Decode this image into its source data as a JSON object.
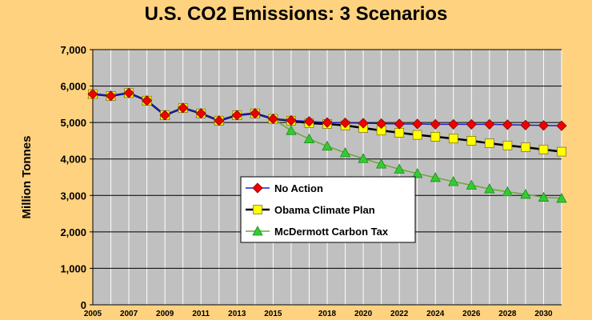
{
  "chart_data": {
    "type": "line",
    "title": "U.S. CO2 Emissions: 3 Scenarios",
    "ylabel": "Million Tonnes",
    "xlabel": "",
    "ylim": [
      0,
      7000
    ],
    "xlim": [
      2005,
      2031
    ],
    "yticks": [
      0,
      1000,
      2000,
      3000,
      4000,
      5000,
      6000,
      7000
    ],
    "ytick_labels": [
      "0",
      "1,000",
      "2,000",
      "3,000",
      "4,000",
      "5,000",
      "6,000",
      "7,000"
    ],
    "xticks": [
      2005,
      2007,
      2009,
      2011,
      2013,
      2015,
      2018,
      2020,
      2022,
      2024,
      2026,
      2028,
      2030
    ],
    "xtick_labels": [
      "2005",
      "2007",
      "2009",
      "2011",
      "2013",
      "2015",
      "2018",
      "2020",
      "2022",
      "2024",
      "2026",
      "2028",
      "2030"
    ],
    "grid": true,
    "legend_position": "center",
    "plot_background": "#c0c0c0",
    "series": [
      {
        "name": "No Action",
        "color": "#1f1fcc",
        "marker": "diamond",
        "marker_color": "#ee0000",
        "x": [
          2005,
          2006,
          2007,
          2008,
          2009,
          2010,
          2011,
          2012,
          2013,
          2014,
          2015,
          2016,
          2017,
          2018,
          2019,
          2020,
          2021,
          2022,
          2023,
          2024,
          2025,
          2026,
          2027,
          2028,
          2029,
          2030,
          2031
        ],
        "values": [
          5780,
          5730,
          5810,
          5600,
          5200,
          5400,
          5250,
          5050,
          5200,
          5250,
          5100,
          5060,
          5030,
          5000,
          4990,
          4980,
          4970,
          4960,
          4960,
          4950,
          4950,
          4950,
          4950,
          4940,
          4930,
          4920,
          4910
        ]
      },
      {
        "name": "Obama Climate Plan",
        "color": "#000000",
        "marker": "square",
        "marker_color": "#ffff00",
        "x": [
          2005,
          2006,
          2007,
          2008,
          2009,
          2010,
          2011,
          2012,
          2013,
          2014,
          2015,
          2016,
          2017,
          2018,
          2019,
          2020,
          2021,
          2022,
          2023,
          2024,
          2025,
          2026,
          2027,
          2028,
          2029,
          2030,
          2031
        ],
        "values": [
          5780,
          5730,
          5810,
          5600,
          5200,
          5400,
          5250,
          5050,
          5200,
          5250,
          5100,
          5050,
          4980,
          4960,
          4920,
          4850,
          4780,
          4720,
          4660,
          4610,
          4560,
          4500,
          4430,
          4370,
          4320,
          4260,
          4200
        ]
      },
      {
        "name": "McDermott Carbon Tax",
        "color": "#66aa33",
        "marker": "triangle",
        "marker_color": "#33cc33",
        "x": [
          2005,
          2006,
          2007,
          2008,
          2009,
          2010,
          2011,
          2012,
          2013,
          2014,
          2015,
          2016,
          2017,
          2018,
          2019,
          2020,
          2021,
          2022,
          2023,
          2024,
          2025,
          2026,
          2027,
          2028,
          2029,
          2030,
          2031
        ],
        "values": [
          5780,
          5730,
          5810,
          5600,
          5200,
          5400,
          5250,
          5050,
          5200,
          5250,
          5100,
          4780,
          4550,
          4350,
          4170,
          4010,
          3860,
          3720,
          3600,
          3490,
          3380,
          3280,
          3180,
          3100,
          3030,
          2950,
          2920
        ]
      }
    ]
  }
}
